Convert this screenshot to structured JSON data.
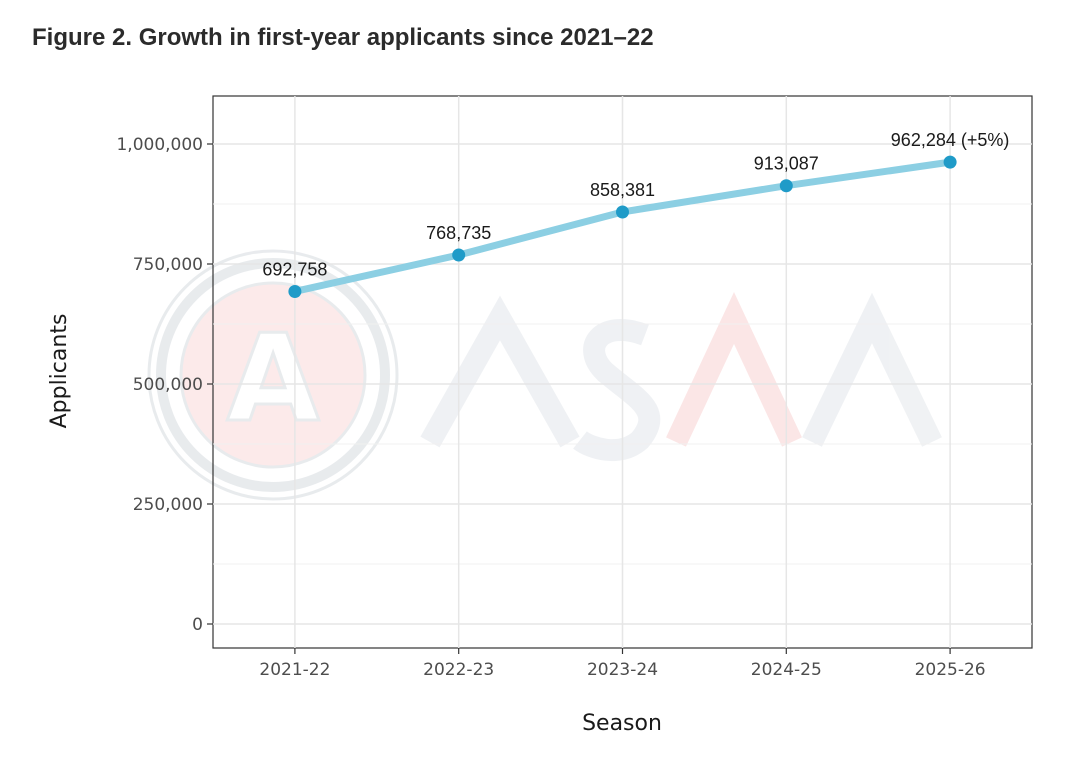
{
  "figure": {
    "title": "Figure 2. Growth in first-year applicants since 2021–22"
  },
  "watermark": {
    "text": "ASAA",
    "seal_letter": "A"
  },
  "colors": {
    "line": "#8ccfe3",
    "point": "#1f9bc8",
    "grid": "#e6e6e6",
    "panel_border": "#333333"
  },
  "chart_data": {
    "type": "line",
    "title": "Figure 2. Growth in first-year applicants since 2021–22",
    "xlabel": "Season",
    "ylabel": "Applicants",
    "categories": [
      "2021-22",
      "2022-23",
      "2023-24",
      "2024-25",
      "2025-26"
    ],
    "values": [
      692758,
      768735,
      858381,
      913087,
      962284
    ],
    "data_labels": [
      "692,758",
      "768,735",
      "858,381",
      "913,087",
      "962,284 (+5%)"
    ],
    "ylim": [
      -50000,
      1100000
    ],
    "yticks": [
      0,
      250000,
      500000,
      750000,
      1000000
    ],
    "ytick_labels": [
      "0",
      "250,000",
      "500,000",
      "750,000",
      "1,000,000"
    ],
    "grid": true
  }
}
